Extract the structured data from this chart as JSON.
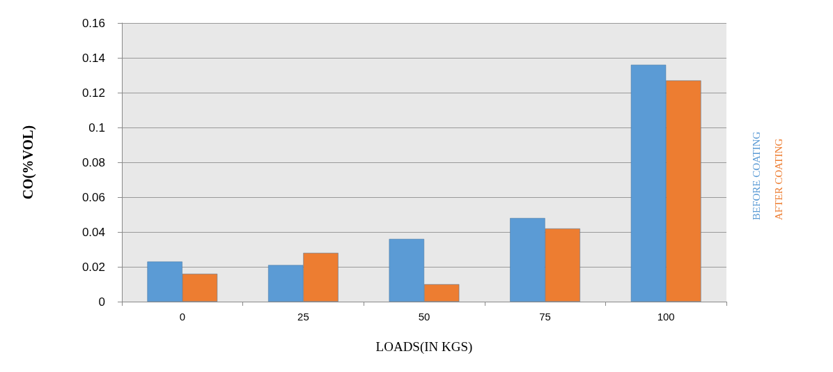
{
  "chart_data": {
    "type": "bar",
    "xlabel": "LOADS(IN KGS)",
    "ylabel": "CO(%VOL)",
    "categories": [
      "0",
      "25",
      "50",
      "75",
      "100"
    ],
    "series": [
      {
        "name": "BEFORE COATING",
        "color": "#5b9bd5",
        "values": [
          0.023,
          0.021,
          0.036,
          0.048,
          0.136
        ]
      },
      {
        "name": "AFTER COATING",
        "color": "#ed7d31",
        "values": [
          0.016,
          0.028,
          0.01,
          0.042,
          0.127
        ]
      }
    ],
    "ylim": [
      0,
      0.16
    ],
    "yticks": [
      0,
      0.02,
      0.04,
      0.06,
      0.08,
      0.1,
      0.12,
      0.14,
      0.16
    ],
    "grid": "y",
    "legend": "right"
  }
}
